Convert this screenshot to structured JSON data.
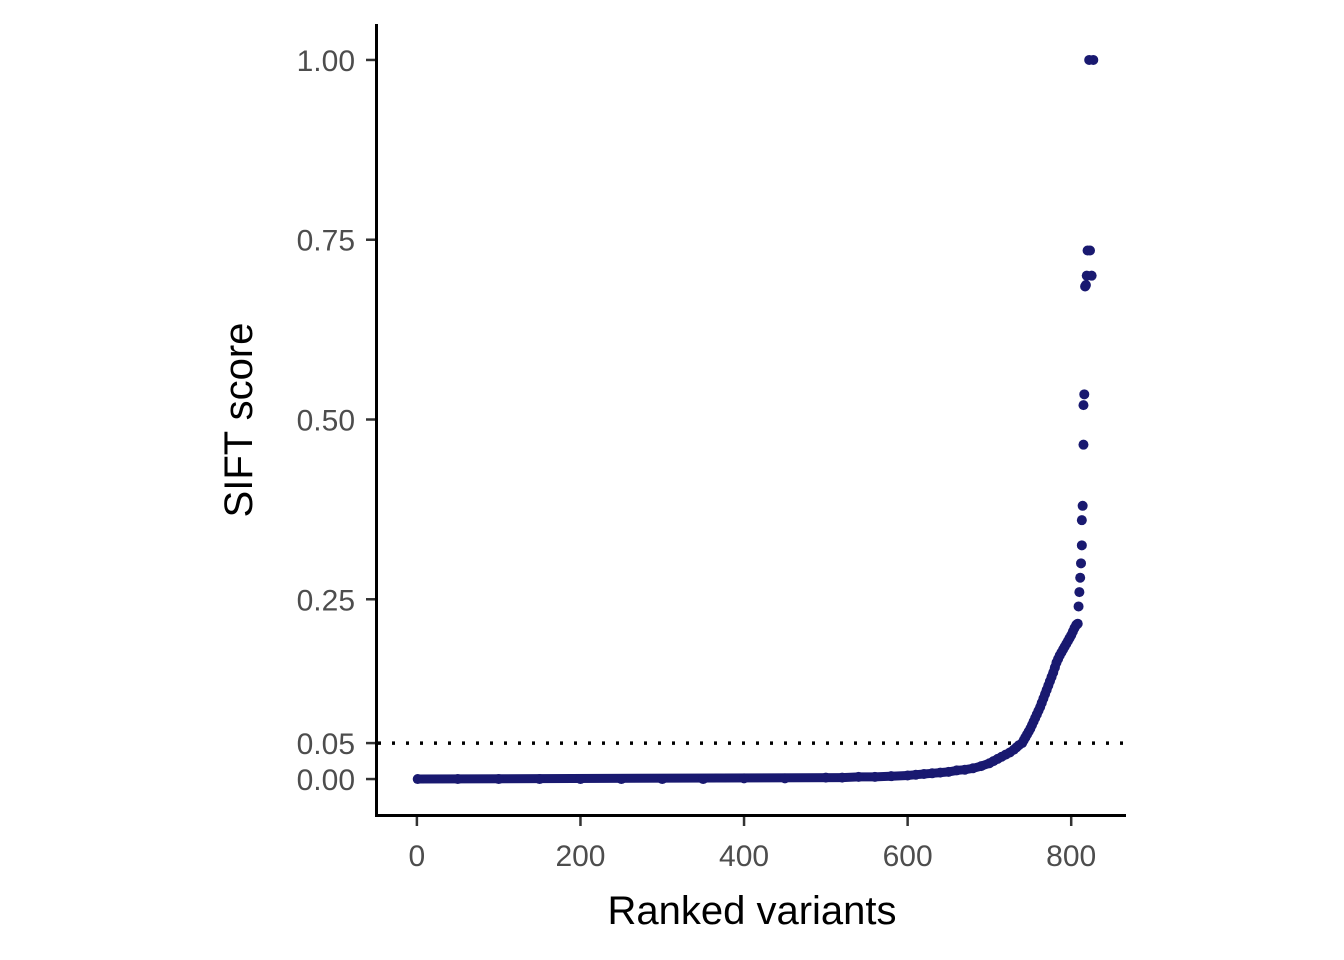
{
  "chart_data": {
    "type": "scatter",
    "xlabel": "Ranked variants",
    "ylabel": "SIFT score",
    "xlim": [
      -50,
      867
    ],
    "ylim": [
      -0.05,
      1.05
    ],
    "x_ticks": [
      0,
      200,
      400,
      600,
      800
    ],
    "x_tick_labels": [
      "0",
      "200",
      "400",
      "600",
      "800"
    ],
    "y_ticks": [
      0,
      0.05,
      0.25,
      0.5,
      0.75,
      1.0
    ],
    "y_tick_labels": [
      "0.00",
      "0.05",
      "0.25",
      "0.50",
      "0.75",
      "1.00"
    ],
    "grid": false,
    "legend": "none",
    "reference_line": {
      "y": 0.05,
      "style": "dotted",
      "color": "#000000"
    },
    "point_color": "#191970",
    "series": [
      {
        "x": [
          1,
          50,
          100,
          150,
          200,
          250,
          300,
          350,
          400,
          450,
          500,
          520,
          540,
          560,
          580,
          600,
          610,
          620,
          630,
          640,
          650,
          660,
          670,
          680,
          690,
          700,
          705,
          710,
          715,
          720,
          725,
          730,
          733,
          736,
          740,
          742,
          744,
          746,
          748,
          750,
          752,
          754,
          756,
          758,
          760,
          762,
          764,
          766,
          768,
          770,
          772,
          774,
          776,
          778,
          780,
          782,
          784,
          786,
          788,
          790,
          792,
          794,
          796,
          798,
          800,
          802,
          804,
          806,
          807,
          808,
          809,
          810,
          811,
          812,
          813,
          813,
          814,
          815,
          815,
          816,
          817,
          818,
          819,
          820,
          822,
          823,
          825,
          827
        ],
        "y": [
          0.0,
          0.0,
          0.0,
          0.0,
          0.0,
          0.0,
          0.0,
          0.0,
          0.001,
          0.001,
          0.002,
          0.002,
          0.003,
          0.003,
          0.004,
          0.005,
          0.006,
          0.007,
          0.008,
          0.009,
          0.01,
          0.012,
          0.013,
          0.015,
          0.018,
          0.022,
          0.025,
          0.028,
          0.031,
          0.034,
          0.037,
          0.041,
          0.044,
          0.047,
          0.05,
          0.054,
          0.058,
          0.062,
          0.066,
          0.07,
          0.075,
          0.08,
          0.085,
          0.09,
          0.095,
          0.1,
          0.106,
          0.112,
          0.118,
          0.124,
          0.13,
          0.136,
          0.142,
          0.148,
          0.155,
          0.162,
          0.167,
          0.172,
          0.176,
          0.18,
          0.184,
          0.188,
          0.192,
          0.196,
          0.2,
          0.205,
          0.21,
          0.214,
          0.215,
          0.216,
          0.24,
          0.26,
          0.28,
          0.3,
          0.325,
          0.36,
          0.38,
          0.465,
          0.52,
          0.535,
          0.685,
          0.687,
          0.7,
          0.735,
          1.0,
          0.735,
          0.7,
          1.0
        ]
      }
    ]
  }
}
